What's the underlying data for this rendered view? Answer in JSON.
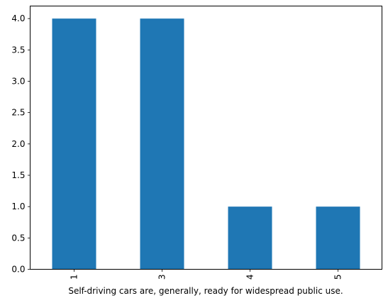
{
  "chart_data": {
    "type": "bar",
    "categories": [
      "1",
      "3",
      "4",
      "5"
    ],
    "values": [
      4,
      4,
      1,
      1
    ],
    "title": "",
    "xlabel": "Self-driving cars are, generally, ready for widespread public use.",
    "ylabel": "",
    "ylim": [
      0,
      4.2
    ],
    "yticks": [
      "0.0",
      "0.5",
      "1.0",
      "1.5",
      "2.0",
      "2.5",
      "3.0",
      "3.5",
      "4.0"
    ],
    "grid": false,
    "legend": "none",
    "bar_color": "#1f77b4"
  }
}
